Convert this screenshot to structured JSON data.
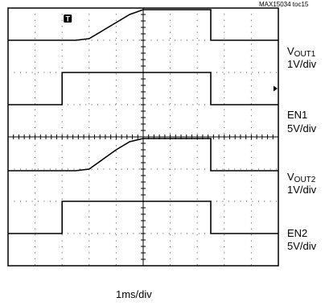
{
  "figure_id": "MAX15034 toc15",
  "chart_data": {
    "type": "line",
    "title": "",
    "xlabel": "1ms/div",
    "ylabel": "",
    "xlim": [
      0,
      10
    ],
    "grid": true,
    "grid_divisions": {
      "x": 10,
      "y": 8
    },
    "trigger_marker": "T",
    "x": [
      0,
      0.5,
      1,
      1.5,
      2,
      2.5,
      3,
      3.5,
      4,
      4.5,
      5,
      5.5,
      6,
      6.5,
      7,
      7.5,
      8,
      8.5,
      9,
      9.5,
      10
    ],
    "channels": [
      {
        "key": "vout1",
        "label_main": "V",
        "label_sub": "OUT1",
        "scale": "1V/div",
        "baseline_div": 7.0,
        "values": [
          0,
          0,
          0,
          0,
          0,
          0,
          0.05,
          0.3,
          0.55,
          0.8,
          0.95,
          0.95,
          0.95,
          0.95,
          0.95,
          0.95,
          0,
          0,
          0,
          0,
          0
        ]
      },
      {
        "key": "en1",
        "label_main": "EN1",
        "label_sub": "",
        "scale": "5V/div",
        "baseline_div": 5.0,
        "values": [
          0,
          0,
          0,
          0,
          0,
          1.0,
          1.0,
          1.0,
          1.0,
          1.0,
          1.0,
          1.0,
          1.0,
          1.0,
          1.0,
          1.0,
          0,
          0,
          0,
          0,
          0
        ]
      },
      {
        "key": "vout2",
        "label_main": "V",
        "label_sub": "OUT2",
        "scale": "1V/div",
        "baseline_div": 2.95,
        "values": [
          0,
          0,
          0,
          0,
          0,
          0,
          0.05,
          0.35,
          0.65,
          0.9,
          1.0,
          1.0,
          1.0,
          1.0,
          1.0,
          1.0,
          0,
          0,
          0,
          0,
          0
        ]
      },
      {
        "key": "en2",
        "label_main": "EN2",
        "label_sub": "",
        "scale": "5V/div",
        "baseline_div": 1.0,
        "values": [
          0,
          0,
          0,
          0,
          0,
          1.0,
          1.0,
          1.0,
          1.0,
          1.0,
          1.0,
          1.0,
          1.0,
          1.0,
          1.0,
          1.0,
          0,
          0,
          0,
          0,
          0
        ]
      }
    ]
  }
}
